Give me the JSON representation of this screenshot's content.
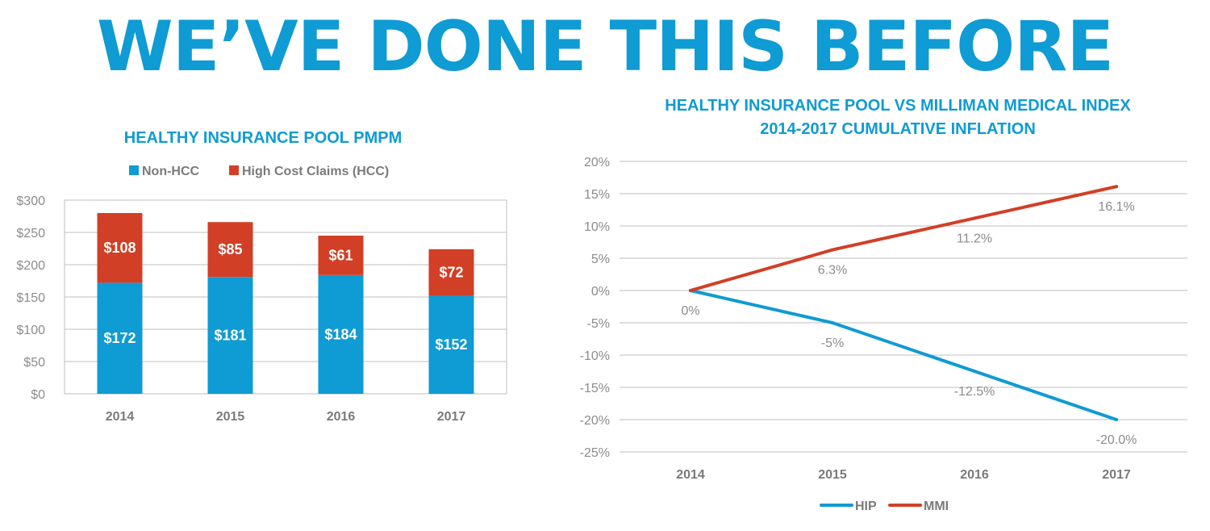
{
  "headline": "WE’VE DONE THIS BEFORE",
  "colors": {
    "accent": "#0f9bd3",
    "hcc": "#d13f26",
    "grid": "#bfbfbf",
    "text": "#8c8c8c"
  },
  "chart_data": [
    {
      "type": "bar",
      "stacked": true,
      "title": "HEALTHY INSURANCE POOL PMPM",
      "categories": [
        "2014",
        "2015",
        "2016",
        "2017"
      ],
      "series": [
        {
          "name": "Non-HCC",
          "color": "#0f9bd3",
          "values": [
            172,
            181,
            184,
            152
          ],
          "labels": [
            "$172",
            "$181",
            "$184",
            "$152"
          ]
        },
        {
          "name": "High Cost Claims (HCC)",
          "color": "#d13f26",
          "values": [
            108,
            85,
            61,
            72
          ],
          "labels": [
            "$108",
            "$85",
            "$61",
            "$72"
          ]
        }
      ],
      "ylim": [
        0,
        300
      ],
      "yticks": [
        0,
        50,
        100,
        150,
        200,
        250,
        300
      ],
      "ytick_labels": [
        "$0",
        "$50",
        "$100",
        "$150",
        "$200",
        "$250",
        "$300"
      ],
      "legend_position": "top",
      "grid": true
    },
    {
      "type": "line",
      "title_lines": [
        "HEALTHY INSURANCE POOL VS MILLIMAN MEDICAL INDEX",
        "2014-2017 CUMULATIVE INFLATION"
      ],
      "categories": [
        "2014",
        "2015",
        "2016",
        "2017"
      ],
      "series": [
        {
          "name": "HIP",
          "color": "#0f9bd3",
          "values": [
            0,
            -5,
            -12.5,
            -20.0
          ],
          "labels": [
            "0%",
            "-5%",
            "-12.5%",
            "-20.0%"
          ]
        },
        {
          "name": "MMI",
          "color": "#d13f26",
          "values": [
            0,
            6.3,
            11.2,
            16.1
          ],
          "labels": [
            "",
            "6.3%",
            "11.2%",
            "16.1%"
          ]
        }
      ],
      "ylim": [
        -25,
        20
      ],
      "yticks": [
        -25,
        -20,
        -15,
        -10,
        -5,
        0,
        5,
        10,
        15,
        20
      ],
      "ytick_labels": [
        "-25%",
        "-20%",
        "-15%",
        "-10%",
        "-5%",
        "0%",
        "5%",
        "10%",
        "15%",
        "20%"
      ],
      "legend_position": "bottom",
      "grid": true
    }
  ]
}
